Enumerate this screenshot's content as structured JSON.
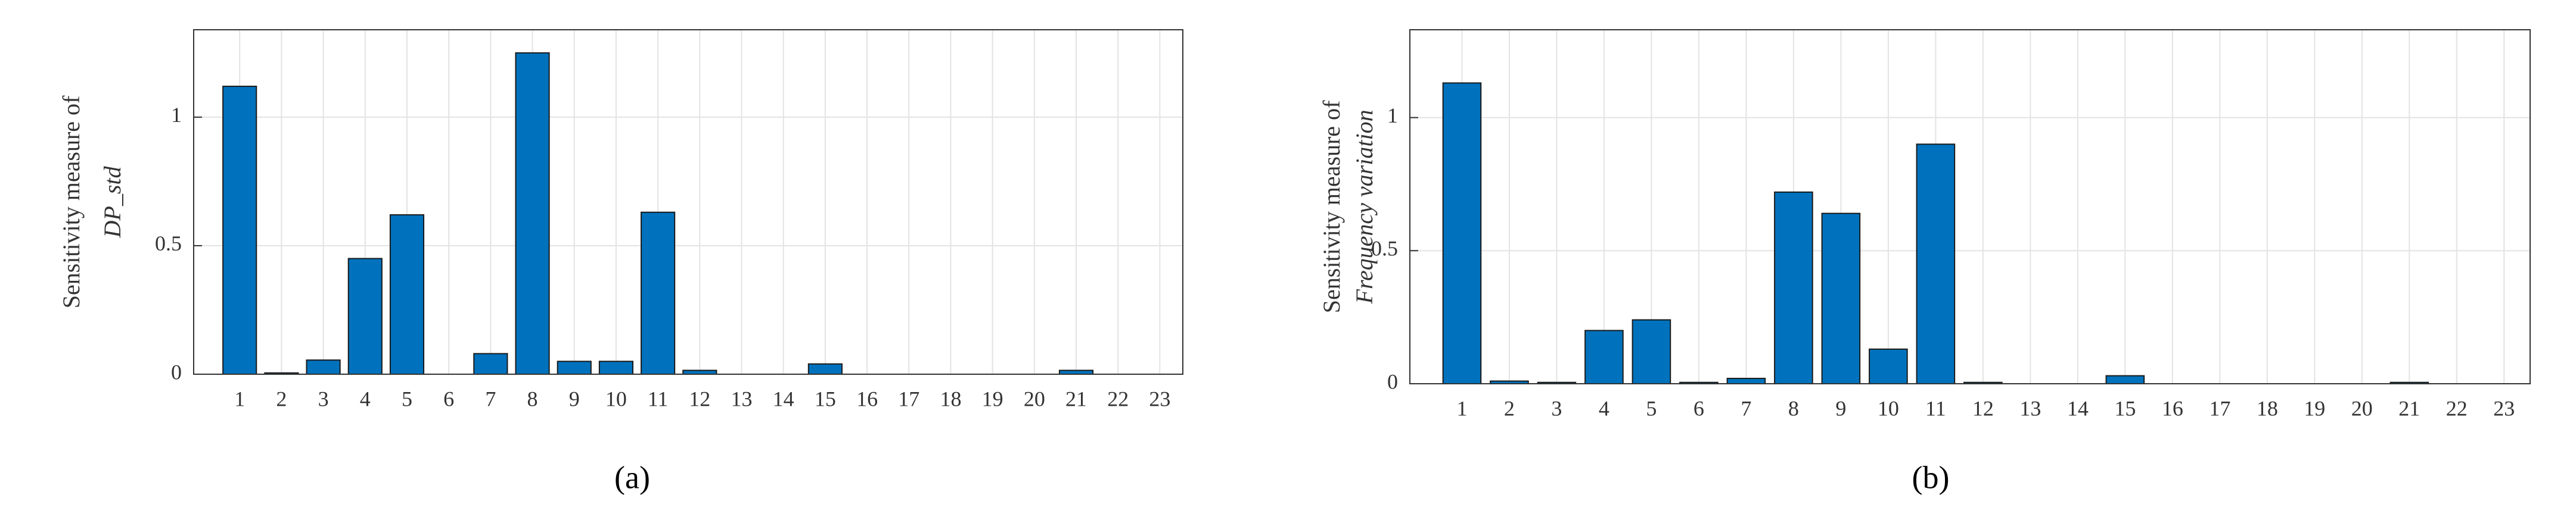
{
  "chart_data": [
    {
      "type": "bar",
      "panel_label": "(a)",
      "ylabel_lines": [
        "Sensitivity measure of",
        "DP_std"
      ],
      "categories": [
        "1",
        "2",
        "3",
        "4",
        "5",
        "6",
        "7",
        "8",
        "9",
        "10",
        "11",
        "12",
        "13",
        "14",
        "15",
        "16",
        "17",
        "18",
        "19",
        "20",
        "21",
        "22",
        "23"
      ],
      "values": [
        1.12,
        0.005,
        0.055,
        0.45,
        0.62,
        0,
        0.08,
        1.25,
        0.05,
        0.05,
        0.63,
        0.015,
        0,
        0,
        0.04,
        0,
        0,
        0,
        0,
        0,
        0.015,
        0,
        0
      ],
      "color": "#0072bd",
      "ylim": [
        0,
        1.34
      ],
      "yticks": [
        0,
        0.5,
        1
      ],
      "grid": true
    },
    {
      "type": "bar",
      "panel_label": "(b)",
      "ylabel_lines": [
        "Sensitivity measure of",
        "Frequency variation"
      ],
      "categories": [
        "1",
        "2",
        "3",
        "4",
        "5",
        "6",
        "7",
        "8",
        "9",
        "10",
        "11",
        "12",
        "13",
        "14",
        "15",
        "16",
        "17",
        "18",
        "19",
        "20",
        "21",
        "22",
        "23"
      ],
      "values": [
        1.13,
        0.01,
        0.005,
        0.2,
        0.24,
        0.005,
        0.02,
        0.72,
        0.64,
        0.13,
        0.9,
        0.005,
        0,
        0,
        0.03,
        0,
        0,
        0,
        0,
        0,
        0.005,
        0,
        0
      ],
      "color": "#0072bd",
      "ylim": [
        0,
        1.33
      ],
      "yticks": [
        0,
        0.5,
        1
      ],
      "grid": true
    }
  ]
}
